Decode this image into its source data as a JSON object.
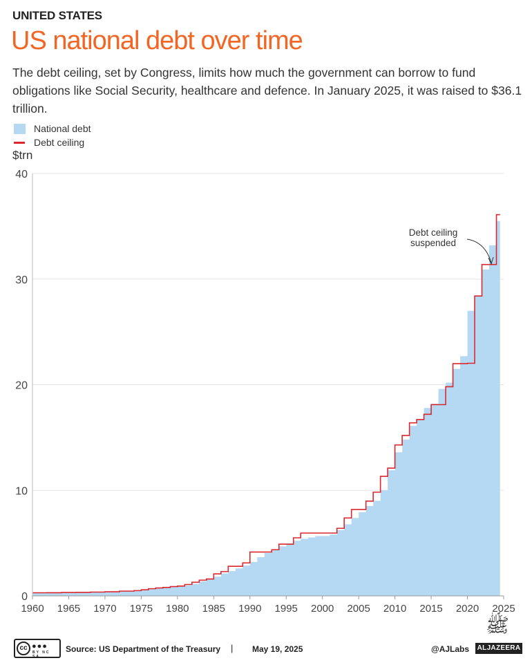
{
  "header": {
    "kicker": "UNITED STATES",
    "title": "US national debt over time",
    "subtitle": "The debt ceiling, set by Congress, limits how much the government can borrow to fund obligations like Social Security, healthcare and defence. In January 2025, it was raised to $36.1 trillion."
  },
  "legend": {
    "national_debt": "National debt",
    "debt_ceiling": "Debt ceiling"
  },
  "colors": {
    "title": "#f26522",
    "national_debt_fill": "#b6d9f3",
    "debt_ceiling_line": "#d9282e",
    "grid": "#e3e3e3"
  },
  "chart_data": {
    "type": "area",
    "ylabel": "$trn",
    "xlim": [
      1960,
      2025
    ],
    "ylim": [
      0,
      40
    ],
    "yticks": [
      0,
      10,
      20,
      30,
      40
    ],
    "xticks": [
      1960,
      1965,
      1970,
      1975,
      1980,
      1985,
      1990,
      1995,
      2000,
      2005,
      2010,
      2015,
      2020,
      2025
    ],
    "grid": true,
    "legend_position": "top-left",
    "annotation": {
      "text": [
        "Debt ceiling",
        "suspended"
      ],
      "x": 2023.5,
      "y": 31.4
    },
    "series": [
      {
        "name": "National debt",
        "style": "step-area",
        "points": [
          [
            1960,
            0.29
          ],
          [
            1962,
            0.3
          ],
          [
            1964,
            0.31
          ],
          [
            1966,
            0.33
          ],
          [
            1968,
            0.35
          ],
          [
            1970,
            0.38
          ],
          [
            1972,
            0.43
          ],
          [
            1974,
            0.48
          ],
          [
            1975,
            0.53
          ],
          [
            1976,
            0.62
          ],
          [
            1977,
            0.7
          ],
          [
            1978,
            0.77
          ],
          [
            1979,
            0.83
          ],
          [
            1980,
            0.91
          ],
          [
            1981,
            1.0
          ],
          [
            1982,
            1.14
          ],
          [
            1983,
            1.38
          ],
          [
            1984,
            1.57
          ],
          [
            1985,
            1.82
          ],
          [
            1986,
            2.13
          ],
          [
            1987,
            2.35
          ],
          [
            1988,
            2.6
          ],
          [
            1989,
            2.87
          ],
          [
            1990,
            3.21
          ],
          [
            1991,
            3.67
          ],
          [
            1992,
            4.06
          ],
          [
            1993,
            4.41
          ],
          [
            1994,
            4.69
          ],
          [
            1995,
            4.97
          ],
          [
            1996,
            5.22
          ],
          [
            1997,
            5.41
          ],
          [
            1998,
            5.53
          ],
          [
            1999,
            5.66
          ],
          [
            2000,
            5.67
          ],
          [
            2001,
            5.81
          ],
          [
            2002,
            6.23
          ],
          [
            2003,
            6.78
          ],
          [
            2004,
            7.38
          ],
          [
            2005,
            7.93
          ],
          [
            2006,
            8.51
          ],
          [
            2007,
            9.01
          ],
          [
            2008,
            10.0
          ],
          [
            2009,
            11.9
          ],
          [
            2010,
            13.6
          ],
          [
            2011,
            14.8
          ],
          [
            2012,
            16.1
          ],
          [
            2013,
            16.7
          ],
          [
            2014,
            17.8
          ],
          [
            2015,
            18.2
          ],
          [
            2016,
            19.6
          ],
          [
            2017,
            20.2
          ],
          [
            2018,
            21.5
          ],
          [
            2019,
            22.7
          ],
          [
            2020,
            27.0
          ],
          [
            2021,
            28.4
          ],
          [
            2022,
            30.9
          ],
          [
            2023,
            33.2
          ],
          [
            2024,
            35.5
          ],
          [
            2024.5,
            35.5
          ]
        ]
      },
      {
        "name": "Debt ceiling",
        "style": "step-line",
        "points": [
          [
            1960,
            0.295
          ],
          [
            1962,
            0.3
          ],
          [
            1964,
            0.32
          ],
          [
            1966,
            0.33
          ],
          [
            1968,
            0.36
          ],
          [
            1970,
            0.39
          ],
          [
            1972,
            0.45
          ],
          [
            1974,
            0.5
          ],
          [
            1975,
            0.58
          ],
          [
            1976,
            0.68
          ],
          [
            1977,
            0.75
          ],
          [
            1978,
            0.8
          ],
          [
            1979,
            0.88
          ],
          [
            1980,
            0.93
          ],
          [
            1981,
            1.08
          ],
          [
            1982,
            1.29
          ],
          [
            1983,
            1.49
          ],
          [
            1984,
            1.6
          ],
          [
            1985,
            2.08
          ],
          [
            1986,
            2.3
          ],
          [
            1987,
            2.8
          ],
          [
            1988,
            2.8
          ],
          [
            1989,
            3.12
          ],
          [
            1990,
            4.15
          ],
          [
            1991,
            4.15
          ],
          [
            1992,
            4.15
          ],
          [
            1993,
            4.37
          ],
          [
            1994,
            4.9
          ],
          [
            1995,
            4.9
          ],
          [
            1996,
            5.5
          ],
          [
            1997,
            5.95
          ],
          [
            1998,
            5.95
          ],
          [
            1999,
            5.95
          ],
          [
            2000,
            5.95
          ],
          [
            2001,
            5.95
          ],
          [
            2002,
            6.4
          ],
          [
            2003,
            7.38
          ],
          [
            2004,
            8.18
          ],
          [
            2005,
            8.18
          ],
          [
            2006,
            8.97
          ],
          [
            2007,
            9.82
          ],
          [
            2008,
            11.32
          ],
          [
            2009,
            12.1
          ],
          [
            2010,
            14.29
          ],
          [
            2011,
            15.19
          ],
          [
            2012,
            16.39
          ],
          [
            2013,
            16.7
          ],
          [
            2014,
            17.2
          ],
          [
            2015,
            18.11
          ],
          [
            2016,
            18.11
          ],
          [
            2017,
            19.81
          ],
          [
            2018,
            21.99
          ],
          [
            2019,
            21.99
          ],
          [
            2020,
            22.03
          ],
          [
            2021,
            28.4
          ],
          [
            2022,
            31.38
          ],
          [
            2023,
            31.38
          ],
          [
            2023.3,
            31.38
          ],
          [
            2024,
            31.38
          ],
          [
            2024.0,
            36.1
          ],
          [
            2024.5,
            36.1
          ]
        ]
      }
    ]
  },
  "footer": {
    "source": "Source: US Department of the Treasury",
    "separator": "|",
    "date": "May 19, 2025",
    "handle": "@AJLabs",
    "brand": "ALJAZEERA",
    "license_mark": "cc",
    "license_symbols": "BY NC SA"
  }
}
